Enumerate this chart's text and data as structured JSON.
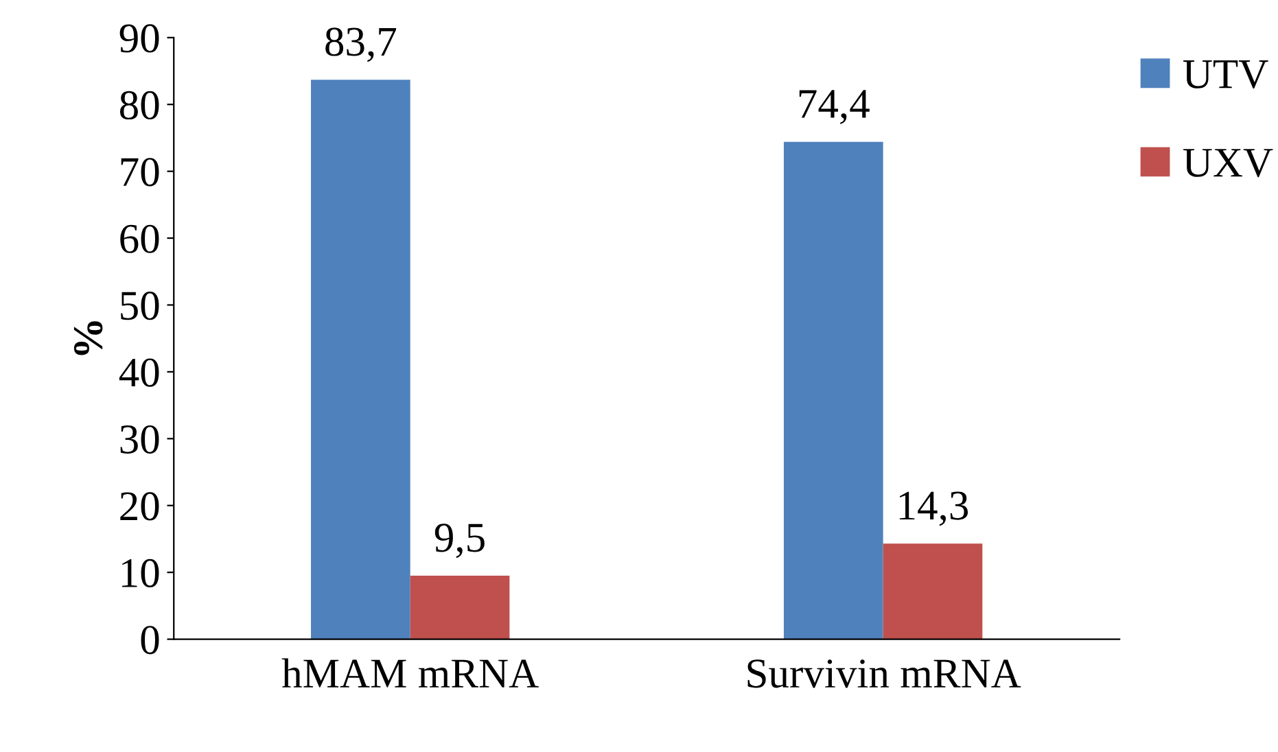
{
  "chart_data": {
    "type": "bar",
    "ylabel": "%",
    "categories": [
      "hMAM mRNA",
      "Survivin mRNA"
    ],
    "series": [
      {
        "name": "UTV",
        "color": "#4f81bd",
        "values": [
          83.7,
          74.4
        ],
        "value_labels": [
          "83,7",
          "74,4"
        ]
      },
      {
        "name": "UXV",
        "color": "#c0504d",
        "values": [
          9.5,
          14.3
        ],
        "value_labels": [
          "9,5",
          "14,3"
        ]
      }
    ],
    "ylim": [
      0,
      90
    ],
    "yticks": [
      0,
      10,
      20,
      30,
      40,
      50,
      60,
      70,
      80,
      90
    ],
    "grid": false,
    "legend": "right"
  }
}
